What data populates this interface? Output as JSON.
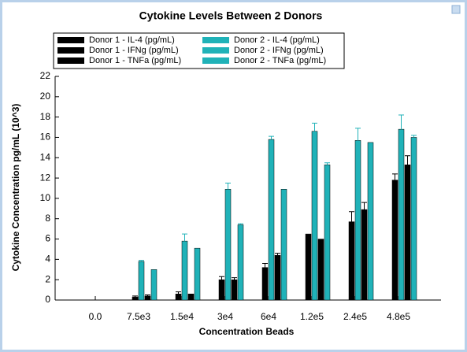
{
  "chart_data": {
    "type": "bar",
    "title": "Cytokine Levels Between 2 Donors",
    "xlabel": "Concentration Beads",
    "ylabel": "Cytokine Concentration pg/mL (10^3)",
    "categories": [
      "0.0",
      "7.5e3",
      "1.5e4",
      "3e4",
      "6e4",
      "1.2e5",
      "2.4e5",
      "4.8e5"
    ],
    "series": [
      {
        "name": "Donor 1 - IL-4 (pg/mL)",
        "color": "#000000",
        "values": [
          null,
          null,
          null,
          null,
          null,
          null,
          null,
          null
        ],
        "errors": [
          null,
          null,
          null,
          null,
          null,
          null,
          null,
          null
        ]
      },
      {
        "name": "Donor 1 - IFNg (pg/mL)",
        "color": "#000000",
        "values": [
          0,
          0.3,
          0.6,
          2.0,
          3.2,
          6.5,
          7.7,
          11.8
        ],
        "errors": [
          0,
          0.1,
          0.2,
          0.3,
          0.4,
          0,
          1.0,
          0.6
        ]
      },
      {
        "name": "Donor 1 - TNFa (pg/mL)",
        "color": "#000000",
        "values": [
          0,
          0.4,
          0.6,
          2.0,
          4.4,
          6.0,
          8.9,
          13.3
        ],
        "errors": [
          0,
          0.1,
          0,
          0.2,
          0.2,
          0,
          0.7,
          0.9
        ]
      },
      {
        "name": "Donor 2 - IL-4 (pg/mL)",
        "color": "#20b2b8",
        "values": [
          null,
          null,
          null,
          null,
          null,
          null,
          null,
          null
        ],
        "errors": [
          null,
          null,
          null,
          null,
          null,
          null,
          null,
          null
        ]
      },
      {
        "name": "Donor 2 - IFNg (pg/mL)",
        "color": "#20b2b8",
        "values": [
          0,
          3.8,
          5.8,
          10.9,
          15.8,
          16.6,
          15.7,
          16.8
        ],
        "errors": [
          0,
          0.1,
          0.7,
          0.6,
          0.3,
          0.8,
          1.2,
          1.4
        ]
      },
      {
        "name": "Donor 2 - TNFa (pg/mL)",
        "color": "#20b2b8",
        "values": [
          0,
          3.0,
          5.1,
          7.4,
          10.9,
          13.3,
          15.5,
          16.0
        ],
        "errors": [
          0,
          0,
          0,
          0.1,
          0,
          0.2,
          0,
          0.2
        ]
      }
    ],
    "ylim": [
      0,
      22
    ],
    "yticks": [
      0,
      2,
      4,
      6,
      8,
      10,
      12,
      14,
      16,
      18,
      20,
      22
    ],
    "legend": "top-left"
  }
}
